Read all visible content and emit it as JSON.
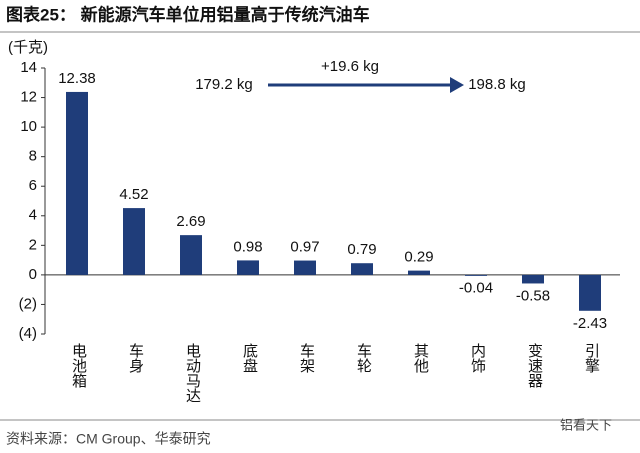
{
  "chart_data": {
    "type": "bar",
    "title": "图表25：  新能源汽车单位用铝量高于传统汽油车",
    "y_label": "(千克)",
    "categories": [
      "电池箱",
      "车身",
      "电动马达",
      "底盘",
      "车架",
      "车轮",
      "其他",
      "内饰",
      "变速器",
      "引擎"
    ],
    "values": [
      12.38,
      4.52,
      2.69,
      0.98,
      0.97,
      0.79,
      0.29,
      -0.04,
      -0.58,
      -2.43
    ],
    "color": "#1f3d7a",
    "ylim": [
      -4,
      14
    ],
    "yticks": [
      {
        "value": -4,
        "label": "(4)"
      },
      {
        "value": -2,
        "label": "(2)"
      },
      0,
      2,
      4,
      6,
      8,
      10,
      12,
      14
    ],
    "grid": false,
    "annotations": [
      "179.2 kg",
      "+19.6 kg",
      "198.8 kg"
    ],
    "source": "资料来源：CM Group、华泰研究",
    "watermark": "铝看天下"
  }
}
